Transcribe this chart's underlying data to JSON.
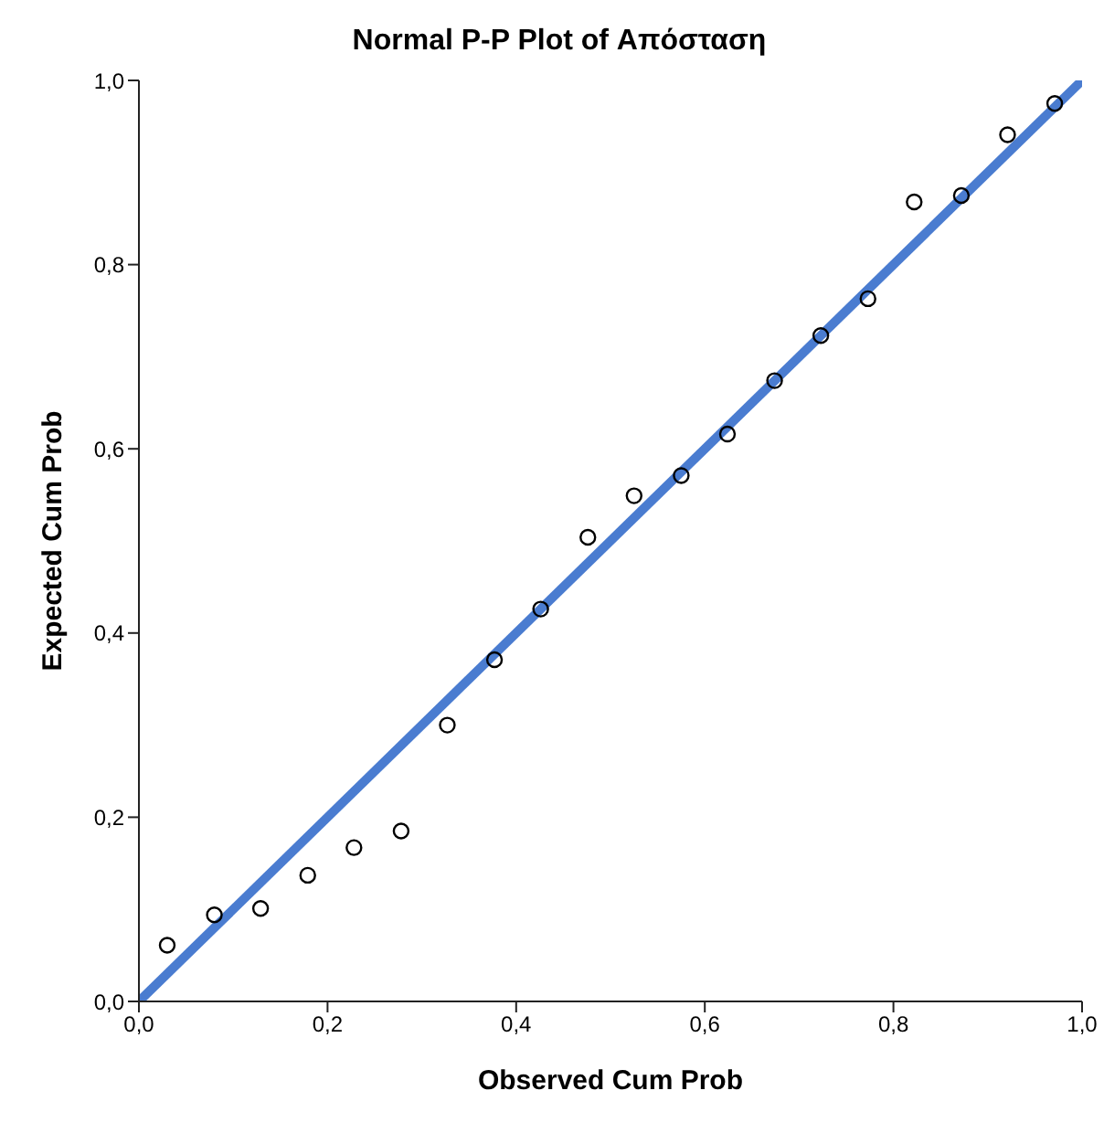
{
  "chart_data": {
    "type": "scatter",
    "title": "Normal P-P Plot of Απόσταση",
    "xlabel": "Observed Cum Prob",
    "ylabel": "Expected Cum Prob",
    "xlim": [
      0,
      1
    ],
    "ylim": [
      0,
      1
    ],
    "xticks": [
      {
        "value": 0,
        "label": "0,0"
      },
      {
        "value": 0.2,
        "label": "0,2"
      },
      {
        "value": 0.4,
        "label": "0,4"
      },
      {
        "value": 0.6,
        "label": "0,6"
      },
      {
        "value": 0.8,
        "label": "0,8"
      },
      {
        "value": 1,
        "label": "1,0"
      }
    ],
    "yticks": [
      {
        "value": 0,
        "label": "0,0"
      },
      {
        "value": 0.2,
        "label": "0,2"
      },
      {
        "value": 0.4,
        "label": "0,4"
      },
      {
        "value": 0.6,
        "label": "0,6"
      },
      {
        "value": 0.8,
        "label": "0,8"
      },
      {
        "value": 1,
        "label": "1,0"
      }
    ],
    "grid": false,
    "legend": false,
    "series": [
      {
        "color": "#000000",
        "marker": "circle",
        "x": [
          0.03,
          0.08,
          0.129,
          0.179,
          0.228,
          0.278,
          0.327,
          0.377,
          0.426,
          0.476,
          0.525,
          0.575,
          0.624,
          0.674,
          0.723,
          0.773,
          0.822,
          0.872,
          0.921,
          0.971
        ],
        "values": [
          0.061,
          0.094,
          0.101,
          0.137,
          0.167,
          0.185,
          0.3,
          0.371,
          0.426,
          0.504,
          0.549,
          0.571,
          0.616,
          0.674,
          0.723,
          0.763,
          0.868,
          0.875,
          0.941,
          0.975
        ]
      },
      {
        "type": "line",
        "color": "#4a7cd0",
        "marker": "none",
        "x": [
          0,
          1
        ],
        "values": [
          0,
          1
        ]
      }
    ]
  }
}
